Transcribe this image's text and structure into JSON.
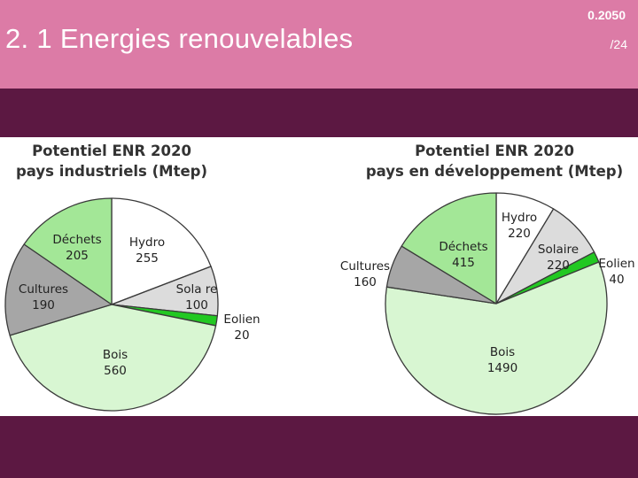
{
  "header": {
    "title": "2. 1 Energies renouvelables",
    "code": "0.2050",
    "page": "/24"
  },
  "chart_data": [
    {
      "type": "pie",
      "title": "Potentiel ENR 2020",
      "subtitle": "pays industriels (Mtep)",
      "categories": [
        "Hydro",
        "Solaire",
        "Eolien",
        "Bois",
        "Cultures",
        "Déchets"
      ],
      "values": [
        255,
        100,
        20,
        560,
        190,
        205
      ],
      "value_labels": [
        "255",
        "100",
        "20",
        "560",
        "190",
        "205"
      ],
      "label_texts": [
        "Hydro",
        "Sola re",
        "Eolien",
        "Bois",
        "Cultures",
        "Déchets"
      ],
      "colors": [
        "#ffffff",
        "#dcdcdc",
        "#22c822",
        "#d8f6d2",
        "#a6a6a6",
        "#a3e797"
      ]
    },
    {
      "type": "pie",
      "title": "Potentiel ENR 2020",
      "subtitle": "pays en développement (Mtep)",
      "categories": [
        "Hydro",
        "Solaire",
        "Eolien",
        "Bois",
        "Cultures",
        "Déchets"
      ],
      "values": [
        220,
        220,
        40,
        1490,
        160,
        415
      ],
      "value_labels": [
        "220",
        "220",
        "40",
        "1490",
        "160",
        "415"
      ],
      "label_texts": [
        "Hydro",
        "Solaire",
        "Eolien",
        "Bois",
        "Cultures",
        "Déchets"
      ],
      "colors": [
        "#ffffff",
        "#dcdcdc",
        "#22c822",
        "#d8f6d2",
        "#a6a6a6",
        "#a3e797"
      ]
    }
  ]
}
